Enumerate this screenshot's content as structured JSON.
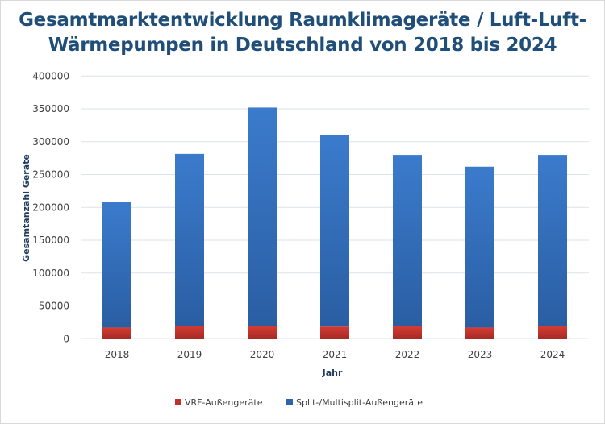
{
  "chart_data": {
    "type": "bar",
    "stacked": true,
    "title": "Gesamtmarktentwicklung Raumklimageräte / Luft-Luft-Wärmepumpen in Deutschland von 2018 bis 2024",
    "title_lines": [
      "Gesamtmarktentwicklung Raumklimageräte / Luft-Luft-",
      "Wärmepumpen in Deutschland von 2018 bis 2024"
    ],
    "xlabel": "Jahr",
    "ylabel": "Gesamtanzahl Geräte",
    "ylim": [
      0,
      400000
    ],
    "yticks": [
      "0",
      "50000",
      "100000",
      "150000",
      "200000",
      "250000",
      "300000",
      "350000",
      "400000"
    ],
    "categories": [
      "2018",
      "2019",
      "2020",
      "2021",
      "2022",
      "2023",
      "2024"
    ],
    "series": [
      {
        "name": "VRF-Außengeräte",
        "color": "#c0312b",
        "values": [
          17000,
          20000,
          19000,
          18500,
          19000,
          17000,
          19000
        ]
      },
      {
        "name": "Split-/Multisplit-Außengeräte",
        "color": "#2e64ad",
        "values": [
          191000,
          261500,
          333000,
          291500,
          261000,
          245000,
          261000
        ]
      }
    ],
    "grid": true,
    "legend": "bottom"
  }
}
